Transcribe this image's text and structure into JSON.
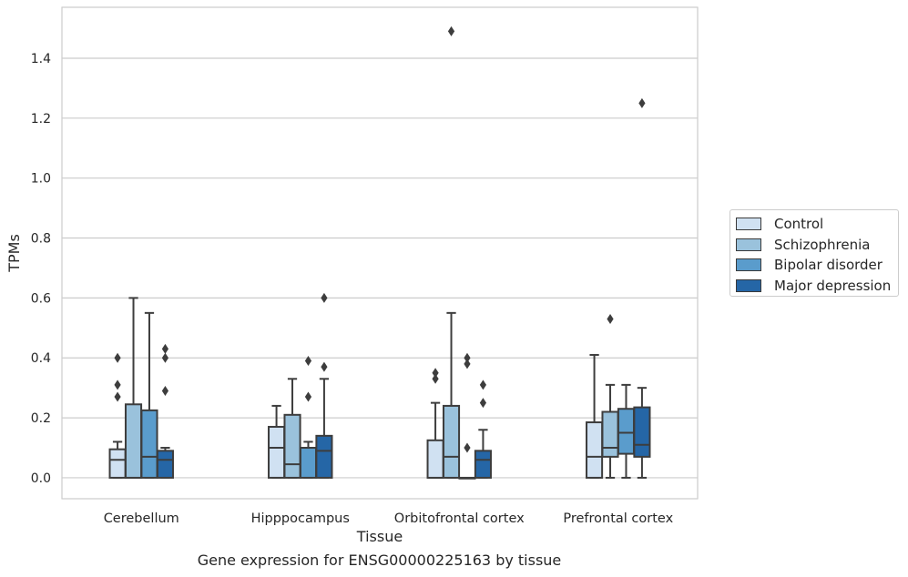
{
  "chart_data": {
    "type": "boxplot",
    "xlabel": "Tissue",
    "ylabel": "TPMs",
    "caption": "Gene expression for ENSG00000225163 by tissue",
    "categories": [
      "Cerebellum",
      "Hipppocampus",
      "Orbitofrontal cortex",
      "Prefrontal cortex"
    ],
    "ylim": [
      -0.07,
      1.57
    ],
    "yticks": [
      0.0,
      0.2,
      0.4,
      0.6,
      0.8,
      1.0,
      1.2,
      1.4
    ],
    "ytick_labels": [
      "0.0",
      "0.2",
      "0.4",
      "0.6",
      "0.8",
      "1.0",
      "1.2",
      "1.4"
    ],
    "grid": "horizontal",
    "legend_position": "right",
    "series": [
      {
        "name": "Control",
        "color": "#d0e1f2",
        "boxes": [
          {
            "q1": 0.0,
            "median": 0.06,
            "q3": 0.095,
            "whisker_low": 0.0,
            "whisker_high": 0.12,
            "outliers": [
              0.27,
              0.31,
              0.4
            ]
          },
          {
            "q1": 0.0,
            "median": 0.1,
            "q3": 0.17,
            "whisker_low": 0.0,
            "whisker_high": 0.24,
            "outliers": []
          },
          {
            "q1": 0.0,
            "median": 0.0,
            "q3": 0.125,
            "whisker_low": 0.0,
            "whisker_high": 0.25,
            "outliers": [
              0.33,
              0.35
            ]
          },
          {
            "q1": 0.0,
            "median": 0.07,
            "q3": 0.185,
            "whisker_low": 0.0,
            "whisker_high": 0.41,
            "outliers": []
          }
        ]
      },
      {
        "name": "Schizophrenia",
        "color": "#9ac2dc",
        "boxes": [
          {
            "q1": 0.0,
            "median": 0.0,
            "q3": 0.245,
            "whisker_low": 0.0,
            "whisker_high": 0.6,
            "outliers": []
          },
          {
            "q1": 0.0,
            "median": 0.045,
            "q3": 0.21,
            "whisker_low": 0.0,
            "whisker_high": 0.33,
            "outliers": []
          },
          {
            "q1": 0.0,
            "median": 0.07,
            "q3": 0.24,
            "whisker_low": 0.0,
            "whisker_high": 0.55,
            "outliers": [
              1.49
            ]
          },
          {
            "q1": 0.07,
            "median": 0.1,
            "q3": 0.22,
            "whisker_low": 0.0,
            "whisker_high": 0.31,
            "outliers": [
              0.53
            ]
          }
        ]
      },
      {
        "name": "Bipolar disorder",
        "color": "#5a9ccc",
        "boxes": [
          {
            "q1": 0.0,
            "median": 0.07,
            "q3": 0.225,
            "whisker_low": 0.0,
            "whisker_high": 0.55,
            "outliers": []
          },
          {
            "q1": 0.0,
            "median": 0.1,
            "q3": 0.1,
            "whisker_low": 0.0,
            "whisker_high": 0.12,
            "outliers": [
              0.27,
              0.39
            ]
          },
          {
            "q1": 0.0,
            "median": 0.0,
            "q3": 0.0,
            "whisker_low": 0.0,
            "whisker_high": 0.0,
            "outliers": [
              0.1,
              0.38,
              0.4
            ]
          },
          {
            "q1": 0.08,
            "median": 0.15,
            "q3": 0.23,
            "whisker_low": 0.0,
            "whisker_high": 0.31,
            "outliers": []
          }
        ]
      },
      {
        "name": "Major depression",
        "color": "#2566a6",
        "boxes": [
          {
            "q1": 0.0,
            "median": 0.06,
            "q3": 0.09,
            "whisker_low": 0.0,
            "whisker_high": 0.1,
            "outliers": [
              0.29,
              0.4,
              0.43
            ]
          },
          {
            "q1": 0.0,
            "median": 0.09,
            "q3": 0.14,
            "whisker_low": 0.0,
            "whisker_high": 0.33,
            "outliers": [
              0.37,
              0.6
            ]
          },
          {
            "q1": 0.0,
            "median": 0.06,
            "q3": 0.09,
            "whisker_low": 0.0,
            "whisker_high": 0.16,
            "outliers": [
              0.25,
              0.31
            ]
          },
          {
            "q1": 0.07,
            "median": 0.11,
            "q3": 0.235,
            "whisker_low": 0.0,
            "whisker_high": 0.3,
            "outliers": [
              1.25
            ]
          }
        ]
      }
    ]
  }
}
